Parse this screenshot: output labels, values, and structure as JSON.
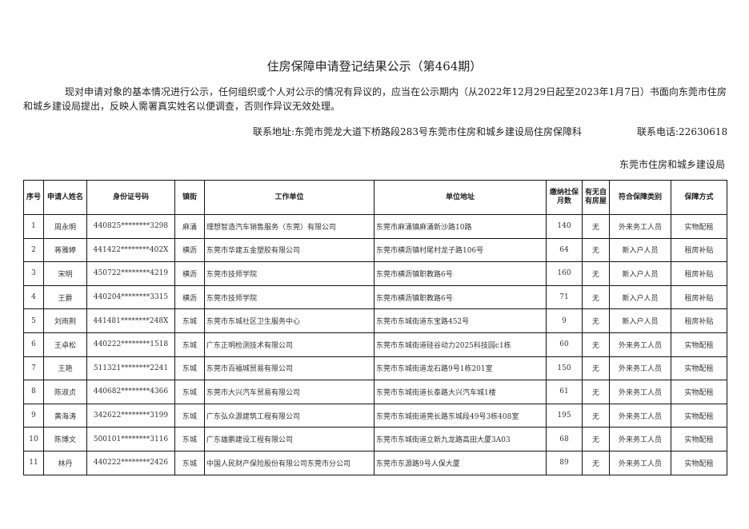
{
  "title": "住房保障申请登记结果公示（第464期）",
  "notice": "现对申请对象的基本情况进行公示，任何组织或个人对公示的情况有异议的，应当在公示期内（从2022年12月29日起至2023年1月7日）书面向东莞市住房和城乡建设局提出，反映人需署真实姓名以便调查，否则作异议无效处理。",
  "contact_address": "联系地址:东莞市莞龙大道下桥路段283号东莞市住房和城乡建设局住房保障科",
  "contact_phone": "联系电话:22630618",
  "issuer": "东莞市住房和城乡建设局",
  "headers": [
    "序号",
    "申请人姓名",
    "身份证号码",
    "镇街",
    "工作单位",
    "单位地址",
    "缴纳社保月数",
    "有无自有房屋",
    "符合保障类别",
    "保障方式"
  ],
  "rows": [
    [
      "1",
      "周永明",
      "440825********3298",
      "麻涌",
      "理想智造汽车销售服务（东莞）有限公司",
      "东莞市麻涌镇麻涌新沙路10路",
      "140",
      "无",
      "外来务工人员",
      "实物配租"
    ],
    [
      "2",
      "蒋雅婷",
      "441422********402X",
      "横沥",
      "东莞市华建五金塑胶有限公司",
      "东莞市横沥镇村尾村龙子路106号",
      "64",
      "无",
      "新入户人员",
      "租房补贴"
    ],
    [
      "3",
      "宋明",
      "450722********4219",
      "横沥",
      "东莞市技师学院",
      "东莞市横沥镇职教路6号",
      "160",
      "无",
      "新入户人员",
      "租房补贴"
    ],
    [
      "4",
      "王爵",
      "440204********3315",
      "横沥",
      "东莞市技师学院",
      "东莞市横沥镇职教路6号",
      "71",
      "无",
      "新入户人员",
      "租房补贴"
    ],
    [
      "5",
      "刘雨荆",
      "441481********248X",
      "东城",
      "东莞市东城社区卫生服务中心",
      "东莞市东城街道东宝路452号",
      "9",
      "无",
      "新入户人员",
      "租房补贴"
    ],
    [
      "6",
      "王卓松",
      "440222********1518",
      "东城",
      "广东正明检测技术有限公司",
      "东莞市东城街道硅谷动力2025科技园c1栋",
      "60",
      "无",
      "外来务工人员",
      "实物配租"
    ],
    [
      "7",
      "王艳",
      "511321********2241",
      "东城",
      "东莞市百福城贸易有限公司",
      "东莞市东城街道龙石路9号1栋201室",
      "150",
      "无",
      "外来务工人员",
      "实物配租"
    ],
    [
      "8",
      "陈淑贞",
      "440682********4366",
      "东城",
      "东莞市大兴汽车贸易有限公司",
      "东莞市东城街道长泰路大兴汽车城1楼",
      "61",
      "无",
      "外来务工人员",
      "实物配租"
    ],
    [
      "9",
      "黄海涛",
      "342622********3199",
      "东城",
      "广东弘众源建筑工程有限公司",
      "东莞市东城街道莞长路东城段49号3栋408室",
      "195",
      "无",
      "外来务工人员",
      "实物配租"
    ],
    [
      "10",
      "陈博文",
      "500101********3116",
      "东城",
      "广东雄鹏建设工程有限公司",
      "东莞市东城街道立新九龙路高田大厦3A03",
      "68",
      "无",
      "外来务工人员",
      "实物配租"
    ],
    [
      "11",
      "林丹",
      "440222********2426",
      "东城",
      "中国人民财产保险股份有限公司东莞市分公司",
      "东莞市东源路9号人保大厦",
      "89",
      "无",
      "外来务工人员",
      "实物配租"
    ]
  ]
}
